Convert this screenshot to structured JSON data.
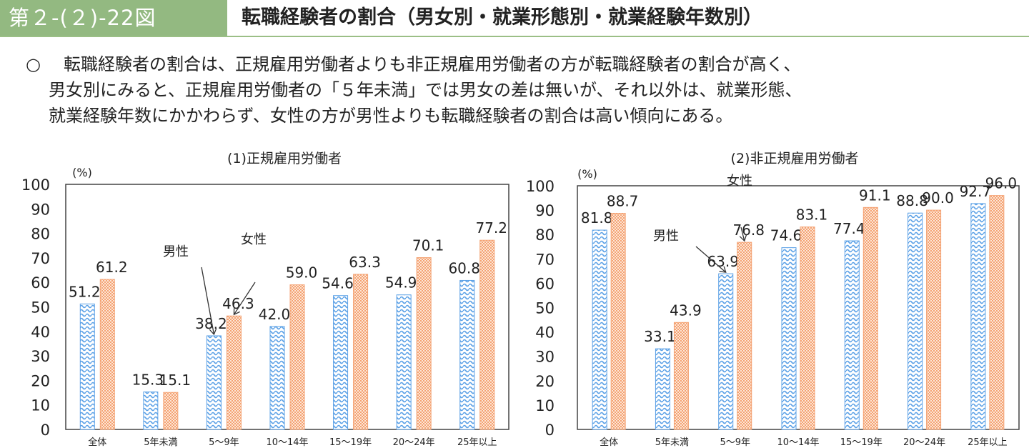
{
  "header": {
    "figure_number": "第２-(２)-22図",
    "title": "転職経験者の割合（男女別・就業形態別・就業経験年数別）"
  },
  "summary": {
    "bullet": "○",
    "lines": [
      "転職経験者の割合は、正規雇用労働者よりも非正規雇用労働者の方が転職経験者の割合が高く、",
      "男女別にみると、正規雇用労働者の「５年未満」では男女の差は無いが、それ以外は、就業形態、",
      "就業経験年数にかかわらず、女性の方が男性よりも転職経験者の割合は高い傾向にある。"
    ]
  },
  "colors": {
    "header_bg": "#93b981",
    "male": "#5aa0e6",
    "female": "#f4a273"
  },
  "chart_data": [
    {
      "type": "bar",
      "title": "(1)正規雇用労働者",
      "ylabel": "(%)",
      "ylim": [
        0,
        100
      ],
      "yticks": [
        0,
        10,
        20,
        30,
        40,
        50,
        60,
        70,
        80,
        90,
        100
      ],
      "categories": [
        "全体",
        "5年未満",
        "5～9年",
        "10～14年",
        "15～19年",
        "20～24年",
        "25年以上"
      ],
      "series": [
        {
          "key": "male",
          "values": [
            51.2,
            15.3,
            38.2,
            42.0,
            54.6,
            54.9,
            60.8
          ]
        },
        {
          "key": "female",
          "values": [
            61.2,
            15.1,
            46.3,
            59.0,
            63.3,
            70.1,
            77.2
          ]
        }
      ],
      "annotations": [
        {
          "text": "男性",
          "series": "male",
          "category": "5～9年"
        },
        {
          "text": "女性",
          "series": "female",
          "category": "5～9年"
        }
      ]
    },
    {
      "type": "bar",
      "title": "(2)非正規雇用労働者",
      "ylabel": "(%)",
      "ylim": [
        0,
        100
      ],
      "yticks": [
        0,
        10,
        20,
        30,
        40,
        50,
        60,
        70,
        80,
        90,
        100
      ],
      "categories": [
        "全体",
        "5年未満",
        "5～9年",
        "10～14年",
        "15～19年",
        "20～24年",
        "25年以上"
      ],
      "series": [
        {
          "key": "male",
          "values": [
            81.8,
            33.1,
            63.9,
            74.6,
            77.4,
            88.8,
            92.7
          ]
        },
        {
          "key": "female",
          "values": [
            88.7,
            43.9,
            76.8,
            83.1,
            91.1,
            90.0,
            96.0
          ]
        }
      ],
      "annotations": [
        {
          "text": "男性",
          "series": "male",
          "category": "5～9年"
        },
        {
          "text": "女性",
          "series": "female",
          "category": "5～9年"
        }
      ]
    }
  ]
}
